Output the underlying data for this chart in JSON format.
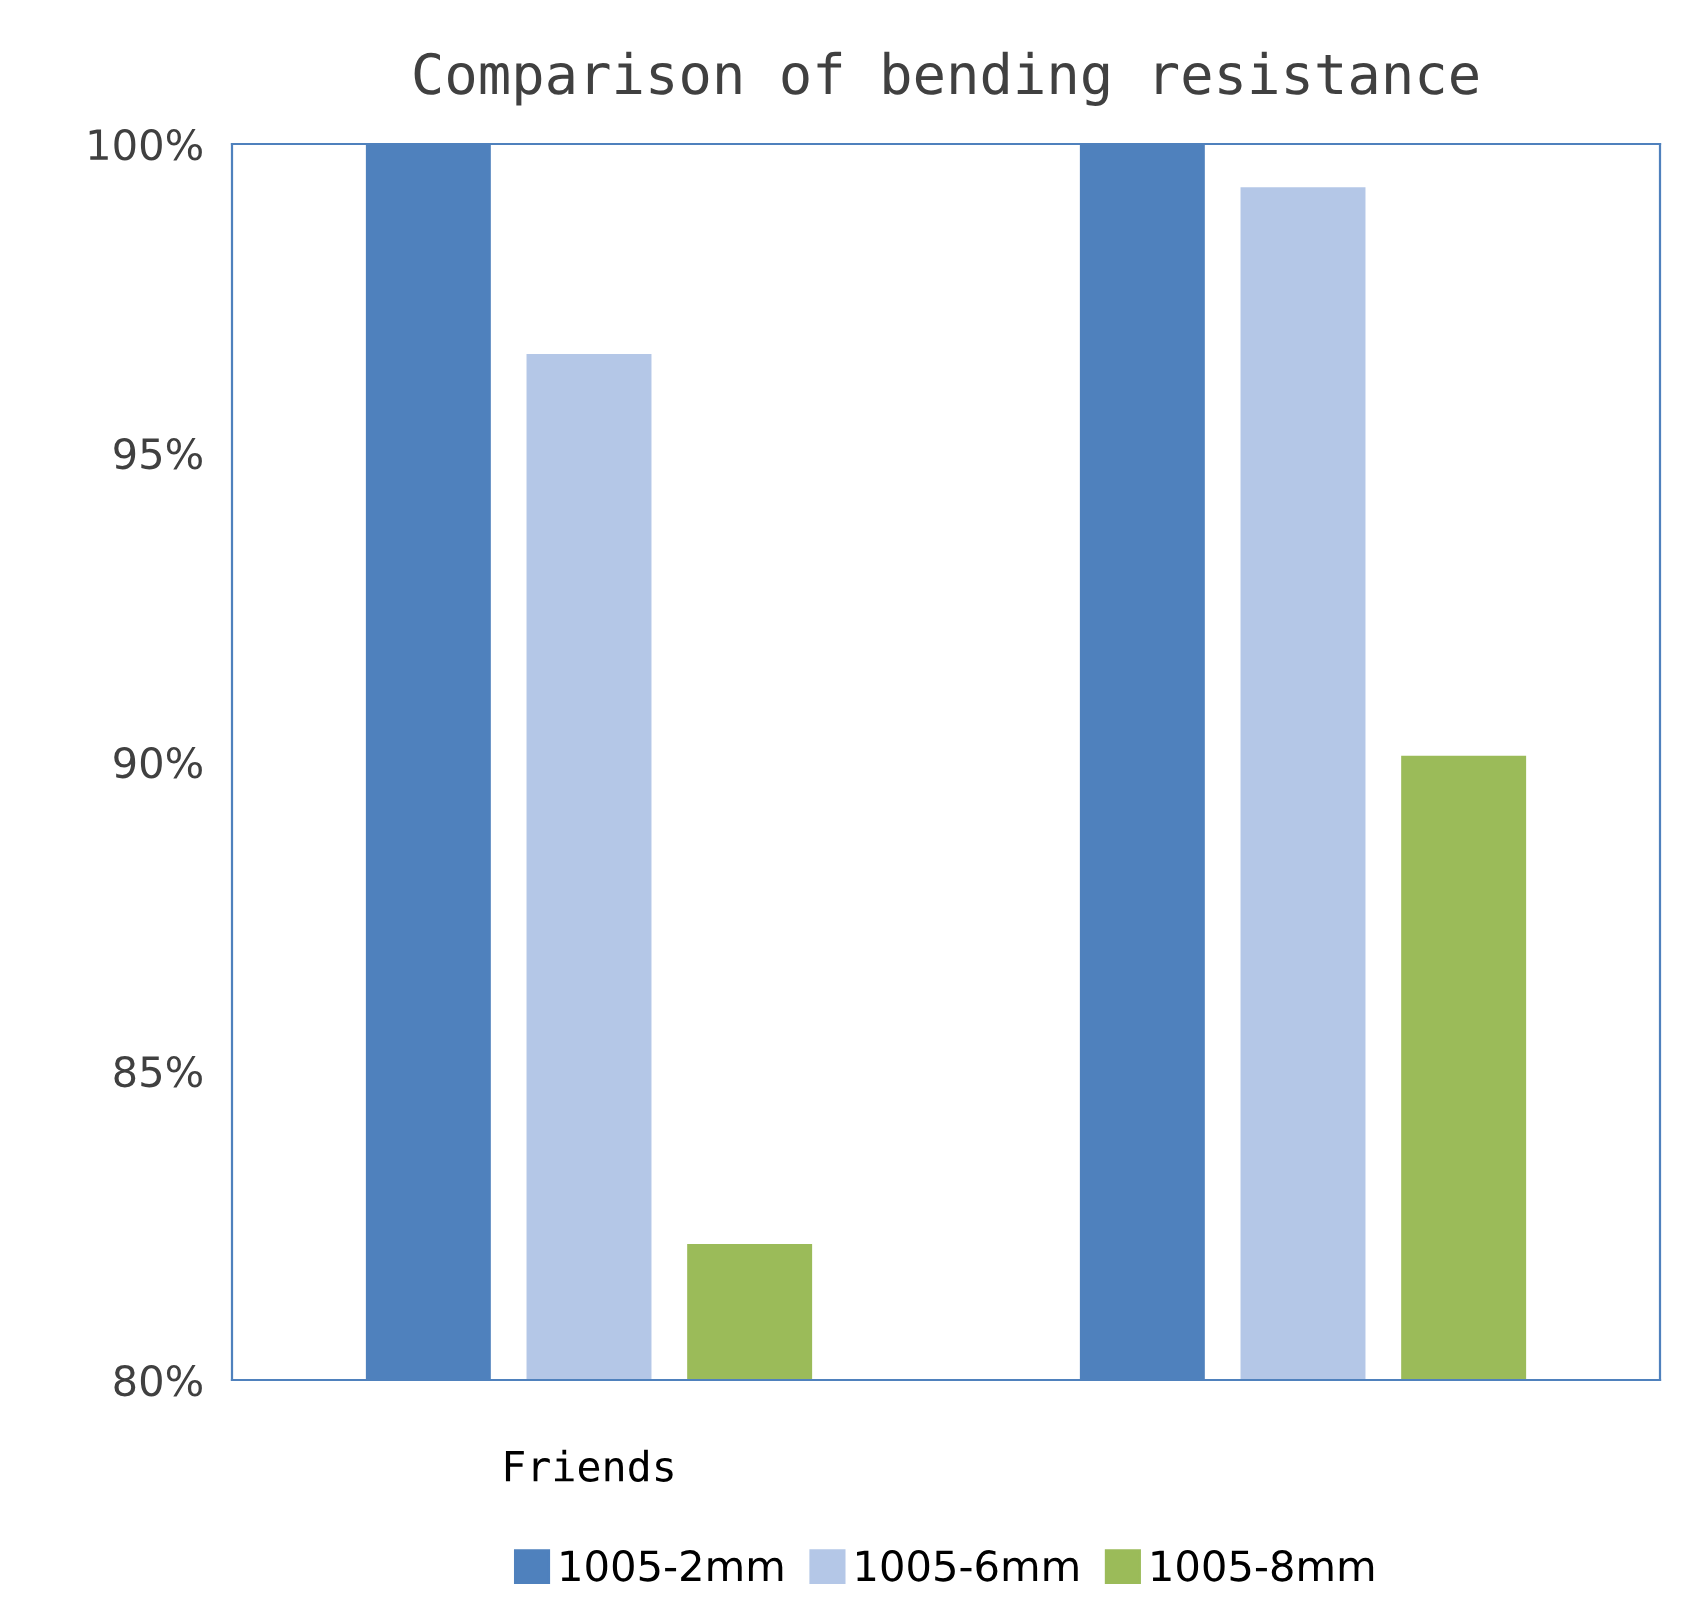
{
  "chart_data": {
    "type": "bar",
    "title": "Comparison of bending resistance",
    "categories": [
      "Friends",
      null
    ],
    "series": [
      {
        "name": "1005-2mm",
        "color": "#4f81bd",
        "values": [
          100,
          100
        ]
      },
      {
        "name": "1005-6mm",
        "color": "#b4c7e7",
        "values": [
          96.6,
          99.3
        ]
      },
      {
        "name": "1005-8mm",
        "color": "#9bbb59",
        "values": [
          82.2,
          90.1
        ]
      }
    ],
    "ylim": [
      80,
      100
    ],
    "yticks": [
      {
        "value": 80,
        "label": "80%"
      },
      {
        "value": 85,
        "label": "85%"
      },
      {
        "value": 90,
        "label": "90%"
      },
      {
        "value": 95,
        "label": "95%"
      },
      {
        "value": 100,
        "label": "100%"
      }
    ],
    "grid": false,
    "legend": "bottom"
  }
}
